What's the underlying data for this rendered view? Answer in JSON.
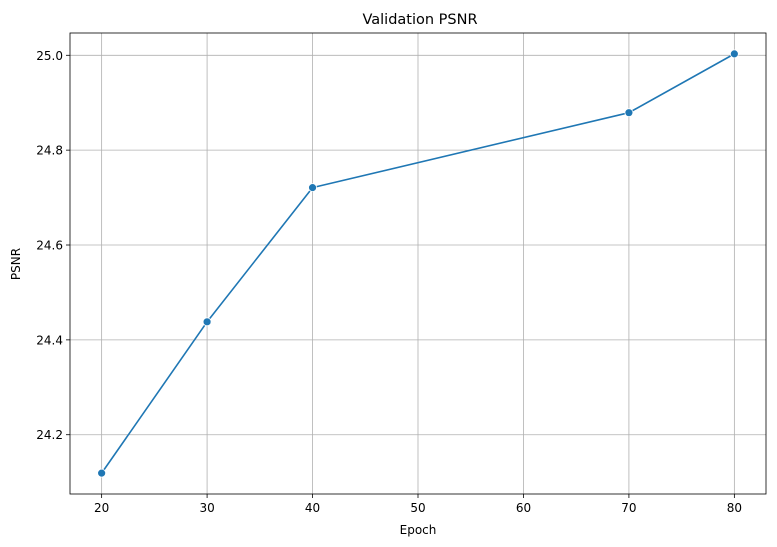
{
  "chart_data": {
    "type": "line",
    "title": "Validation PSNR",
    "xlabel": "Epoch",
    "ylabel": "PSNR",
    "x": [
      20,
      30,
      40,
      70,
      80
    ],
    "series": [
      {
        "values": [
          24.119,
          24.438,
          24.721,
          24.879,
          25.003
        ],
        "color": "#1f77b4",
        "marker": "circle"
      }
    ],
    "xticks": [
      20,
      30,
      40,
      50,
      60,
      70,
      80
    ],
    "xtick_labels": [
      "20",
      "30",
      "40",
      "50",
      "60",
      "70",
      "80"
    ],
    "yticks": [
      24.2,
      24.4,
      24.6,
      24.8,
      25.0
    ],
    "ytick_labels": [
      "24.2",
      "24.4",
      "24.6",
      "24.8",
      "25.0"
    ],
    "xlim": [
      17,
      83
    ],
    "ylim": [
      24.075,
      25.047
    ],
    "grid": true,
    "colors": {
      "grid": "#b0b0b0",
      "spine": "#000000"
    }
  }
}
